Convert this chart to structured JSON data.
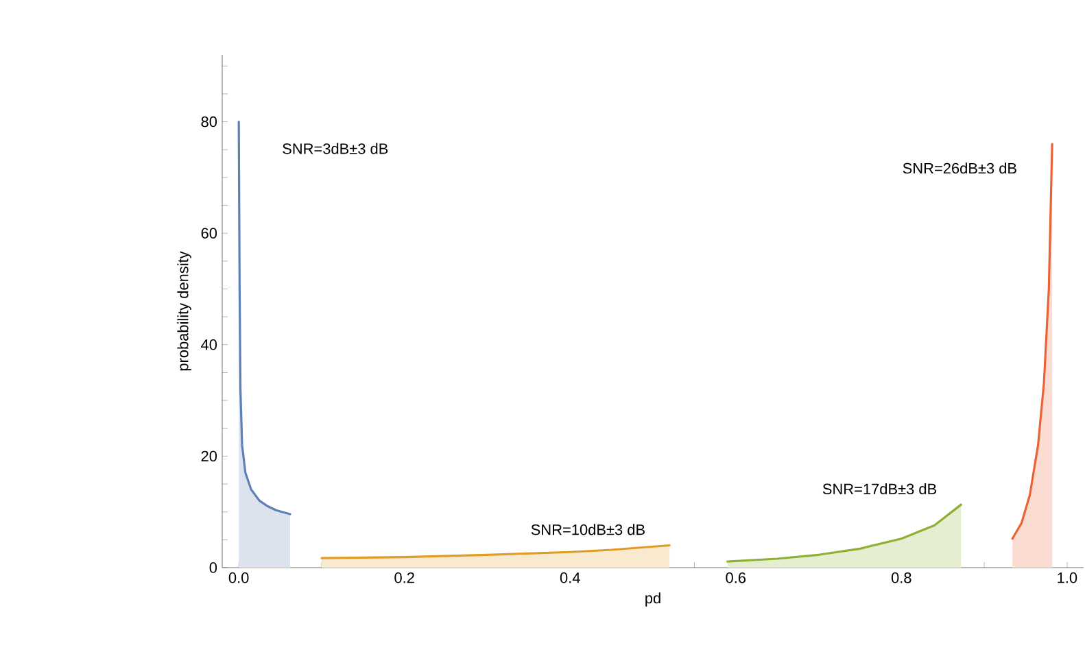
{
  "chart_data": {
    "type": "area",
    "xlabel": "pd",
    "ylabel": "probability density",
    "xlim": [
      -0.02,
      1.02
    ],
    "ylim": [
      0,
      92
    ],
    "xticks": [
      {
        "value": 0,
        "label": "0.0"
      },
      {
        "value": 0.05,
        "label": null
      },
      {
        "value": 0.1,
        "label": null
      },
      {
        "value": 0.15,
        "label": null
      },
      {
        "value": 0.2,
        "label": "0.2"
      },
      {
        "value": 0.25,
        "label": null
      },
      {
        "value": 0.3,
        "label": null
      },
      {
        "value": 0.35,
        "label": null
      },
      {
        "value": 0.4,
        "label": "0.4"
      },
      {
        "value": 0.45,
        "label": null
      },
      {
        "value": 0.5,
        "label": null
      },
      {
        "value": 0.55,
        "label": null
      },
      {
        "value": 0.6,
        "label": "0.6"
      },
      {
        "value": 0.65,
        "label": null
      },
      {
        "value": 0.7,
        "label": null
      },
      {
        "value": 0.75,
        "label": null
      },
      {
        "value": 0.8,
        "label": "0.8"
      },
      {
        "value": 0.85,
        "label": null
      },
      {
        "value": 0.9,
        "label": null
      },
      {
        "value": 0.95,
        "label": null
      },
      {
        "value": 1.0,
        "label": "1.0"
      }
    ],
    "yticks": [
      0,
      {
        "value": 5,
        "label": null
      },
      {
        "value": 10,
        "label": null
      },
      {
        "value": 15,
        "label": null
      },
      20,
      {
        "value": 25,
        "label": null
      },
      {
        "value": 30,
        "label": null
      },
      {
        "value": 35,
        "label": null
      },
      40,
      {
        "value": 45,
        "label": null
      },
      {
        "value": 50,
        "label": null
      },
      {
        "value": 55,
        "label": null
      },
      60,
      {
        "value": 65,
        "label": null
      },
      {
        "value": 70,
        "label": null
      },
      {
        "value": 75,
        "label": null
      },
      80,
      {
        "value": 85,
        "label": null
      },
      {
        "value": 90,
        "label": null
      }
    ],
    "grid": false,
    "legend": false,
    "series": [
      {
        "name": "SNR=3dB±3 dB",
        "color": "#5e81b5",
        "x": [
          0,
          0.001,
          0.002,
          0.004,
          0.008,
          0.015,
          0.025,
          0.035,
          0.045,
          0.062
        ],
        "values": [
          80,
          50,
          32,
          22,
          17,
          14,
          12,
          11,
          10.3,
          9.6
        ]
      },
      {
        "name": "SNR=10dB±3 dB",
        "color": "#e19c24",
        "x": [
          0.1,
          0.2,
          0.3,
          0.4,
          0.45,
          0.52
        ],
        "values": [
          1.7,
          1.9,
          2.3,
          2.8,
          3.2,
          4.0
        ]
      },
      {
        "name": "SNR=17dB±3 dB",
        "color": "#8fb032",
        "x": [
          0.59,
          0.65,
          0.7,
          0.75,
          0.8,
          0.84,
          0.872
        ],
        "values": [
          1.1,
          1.6,
          2.3,
          3.4,
          5.2,
          7.6,
          11.3
        ]
      },
      {
        "name": "SNR=26dB±3 dB",
        "color": "#eb6235",
        "x": [
          0.934,
          0.945,
          0.955,
          0.965,
          0.972,
          0.978,
          0.982
        ],
        "values": [
          5.2,
          8,
          13,
          22,
          33,
          50,
          76
        ]
      }
    ]
  }
}
